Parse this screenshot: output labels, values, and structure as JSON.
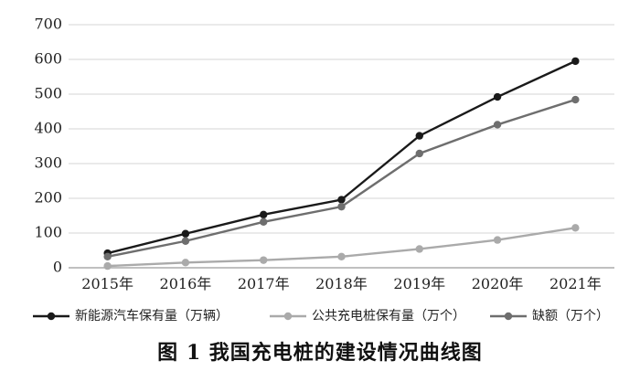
{
  "chart_data": {
    "type": "line",
    "title": "",
    "caption": "图 1  我国充电桩的建设情况曲线图",
    "x": [
      "2015年",
      "2016年",
      "2017年",
      "2018年",
      "2019年",
      "2020年",
      "2021年"
    ],
    "ylim": [
      0,
      700
    ],
    "yticks": [
      0,
      100,
      200,
      300,
      400,
      500,
      600,
      700
    ],
    "grid": "horizontal",
    "legend_position": "bottom",
    "series": [
      {
        "name": "新能源汽车保有量（万辆）",
        "color": "#1a1a1a",
        "values": [
          42,
          98,
          153,
          196,
          380,
          492,
          595
        ]
      },
      {
        "name": "公共充电桩保有量（万个）",
        "color": "#aaaaaa",
        "values": [
          5,
          15,
          22,
          32,
          54,
          80,
          115
        ]
      },
      {
        "name": "缺额（万个）",
        "color": "#6e6e6e",
        "values": [
          32,
          77,
          132,
          176,
          329,
          412,
          484
        ]
      }
    ]
  }
}
